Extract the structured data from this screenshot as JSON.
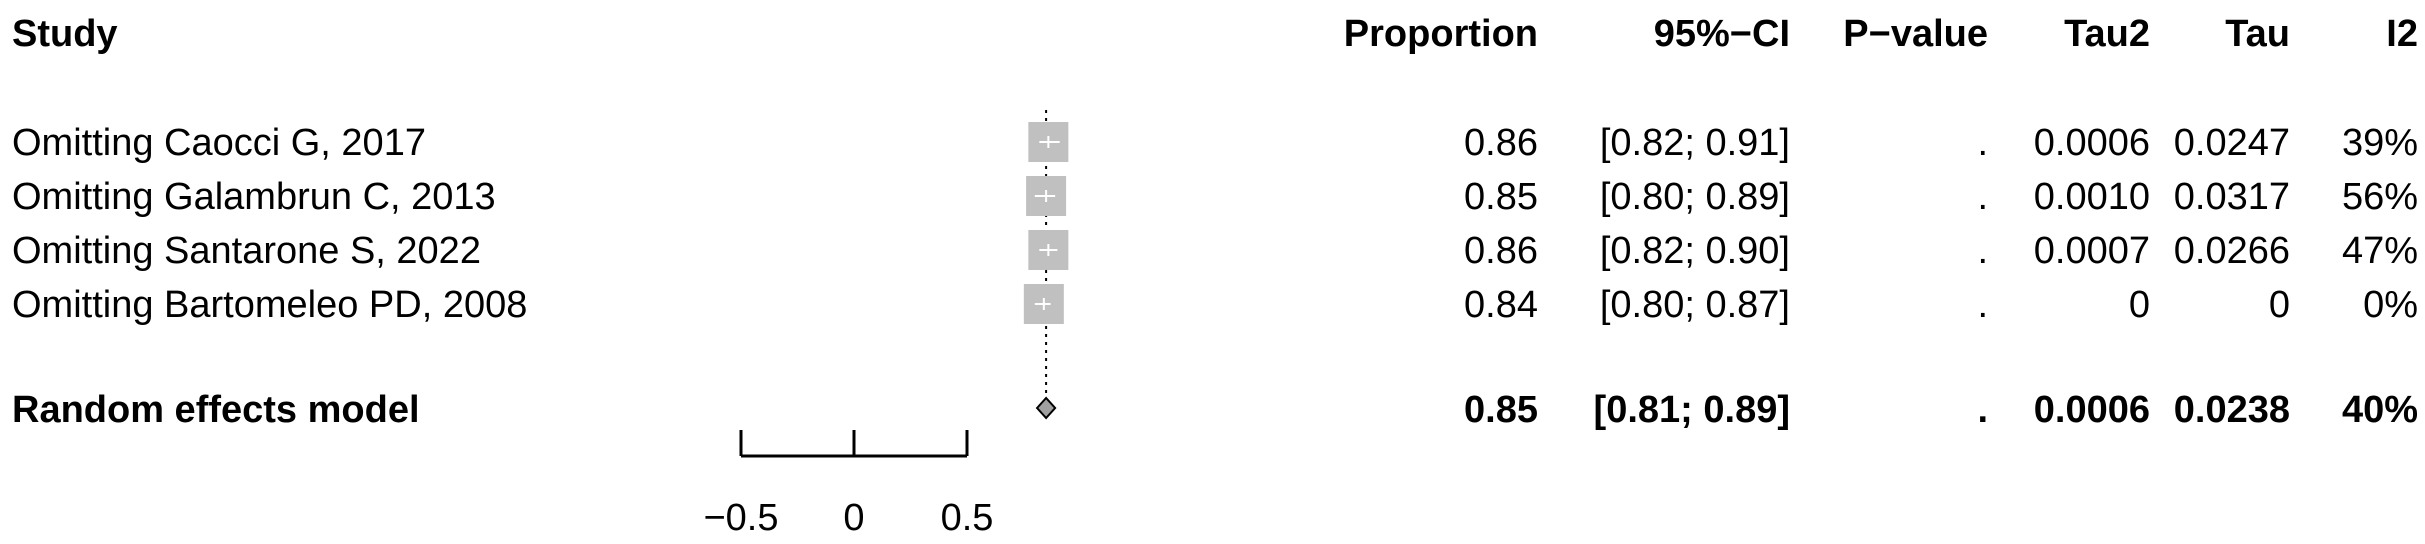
{
  "chart_data": {
    "type": "forest",
    "columns": {
      "study": "Study",
      "proportion": "Proportion",
      "ci": "95%−CI",
      "pvalue": "P−value",
      "tau2": "Tau2",
      "tau": "Tau",
      "i2": "I2"
    },
    "rows": [
      {
        "study": "Omitting Caocci G, 2017",
        "proportion": 0.86,
        "lower": 0.82,
        "upper": 0.91,
        "proportion_text": "0.86",
        "ci_text": "[0.82; 0.91]",
        "pvalue": ".",
        "tau2": "0.0006",
        "tau": "0.0247",
        "i2": "39%"
      },
      {
        "study": "Omitting Galambrun C, 2013",
        "proportion": 0.85,
        "lower": 0.8,
        "upper": 0.89,
        "proportion_text": "0.85",
        "ci_text": "[0.80; 0.89]",
        "pvalue": ".",
        "tau2": "0.0010",
        "tau": "0.0317",
        "i2": "56%"
      },
      {
        "study": "Omitting Santarone S, 2022",
        "proportion": 0.86,
        "lower": 0.82,
        "upper": 0.9,
        "proportion_text": "0.86",
        "ci_text": "[0.82; 0.90]",
        "pvalue": ".",
        "tau2": "0.0007",
        "tau": "0.0266",
        "i2": "47%"
      },
      {
        "study": "Omitting Bartomeleo PD, 2008",
        "proportion": 0.84,
        "lower": 0.8,
        "upper": 0.87,
        "proportion_text": "0.84",
        "ci_text": "[0.80; 0.87]",
        "pvalue": ".",
        "tau2": "0",
        "tau": "0",
        "i2": "0%"
      }
    ],
    "summary": {
      "study": "Random effects model",
      "proportion": 0.85,
      "lower": 0.81,
      "upper": 0.89,
      "proportion_text": "0.85",
      "ci_text": "[0.81; 0.89]",
      "pvalue": ".",
      "tau2": "0.0006",
      "tau": "0.0238",
      "i2": "40%"
    },
    "xaxis": {
      "range": [
        -0.5,
        0.5
      ],
      "ticks": [
        -0.5,
        0,
        0.5
      ],
      "tick_labels": [
        "−0.5",
        "0",
        "0.5"
      ]
    },
    "colors": {
      "square": "#c0c0c0",
      "diamond": "#a0a0a0",
      "text": "#000000"
    }
  }
}
